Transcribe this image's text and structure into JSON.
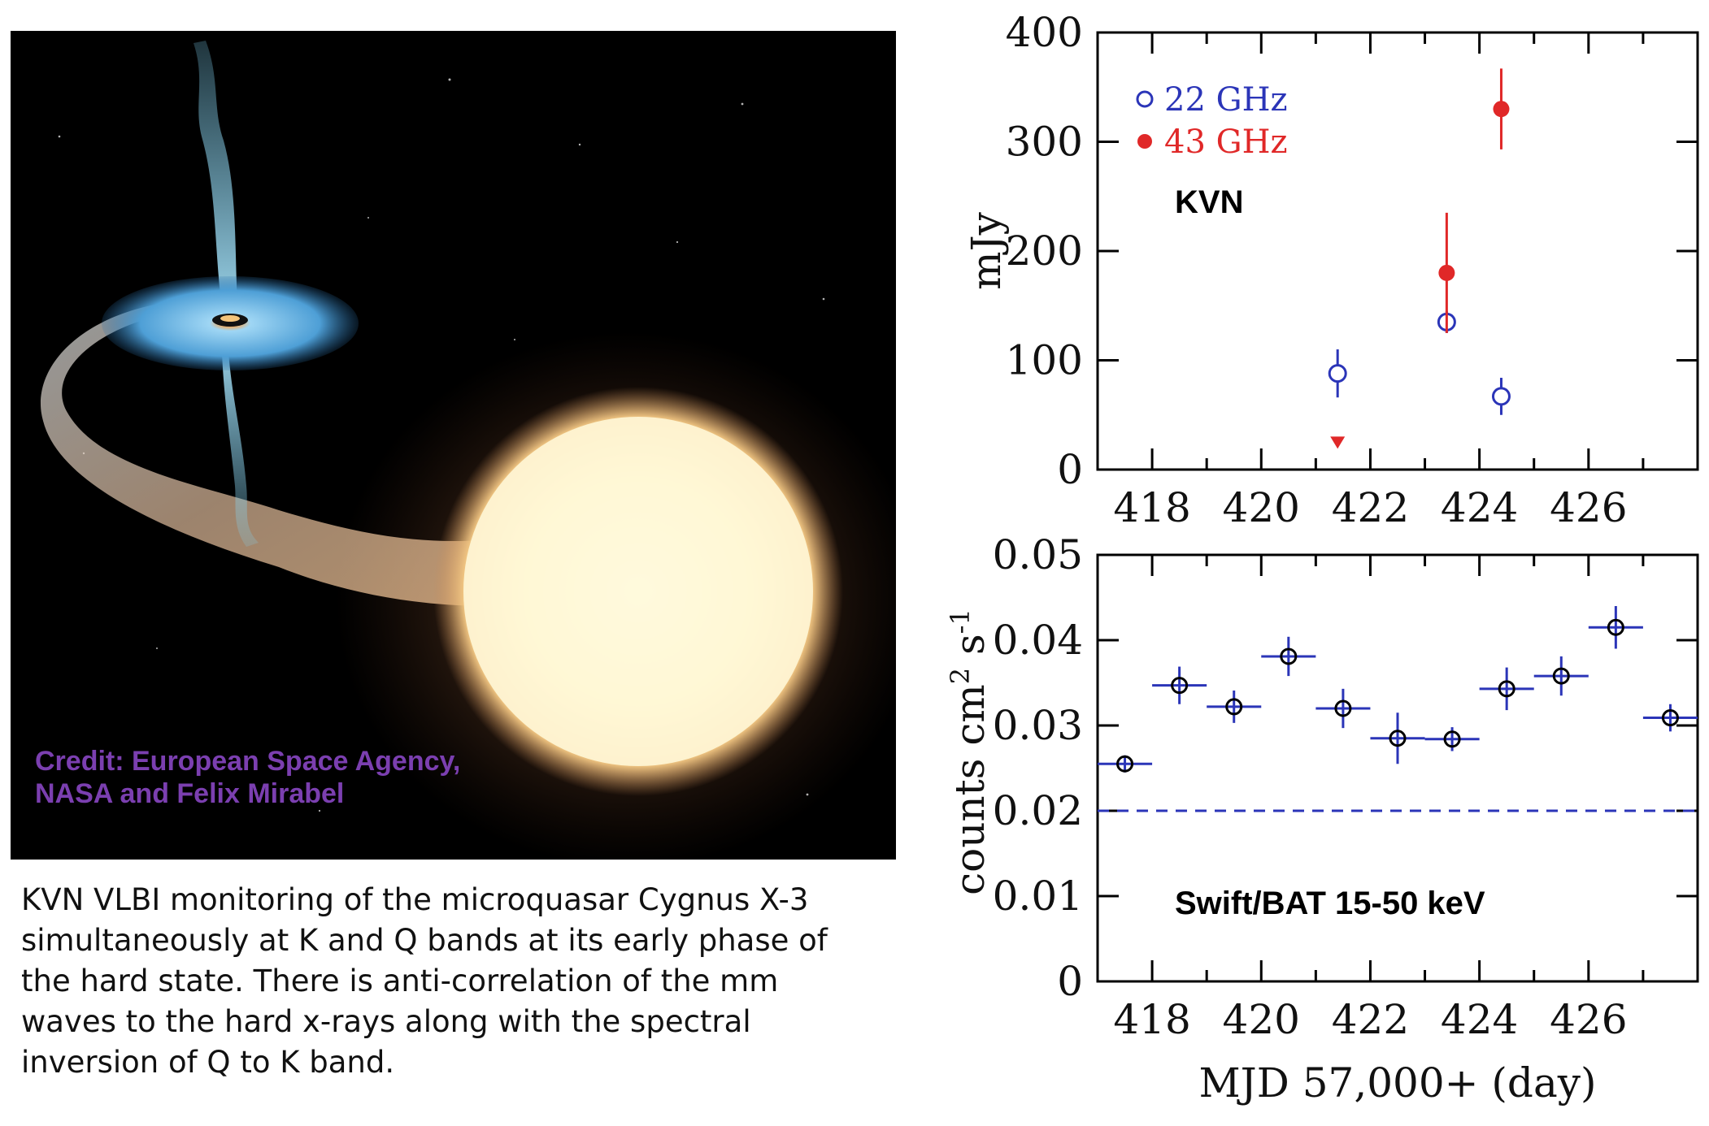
{
  "artwork": {
    "credit_line1": "Credit: European Space Agency,",
    "credit_line2": "NASA and Felix Mirabel",
    "credit_color": "#7b3fb0"
  },
  "caption": {
    "lines": [
      "KVN VLBI monitoring of the microquasar Cygnus X-3",
      "simultaneously at K and Q bands at its early phase of",
      "the hard state. There is anti-correlation of the mm",
      "waves to the hard x-rays along with the spectral",
      "inversion of Q to K band."
    ]
  },
  "chart_data": [
    {
      "type": "scatter",
      "annotation": "KVN",
      "ylabel": "mJy",
      "xlim": [
        417,
        428
      ],
      "ylim": [
        0,
        400
      ],
      "x_ticks": [
        418,
        420,
        422,
        424,
        426
      ],
      "y_ticks": [
        0,
        100,
        200,
        300,
        400
      ],
      "legend_position": "top-left",
      "series": [
        {
          "name": "22 GHz",
          "marker": "open-circle",
          "color": "#2b35b8",
          "points": [
            {
              "x": 421.4,
              "y": 88,
              "yerr": 22
            },
            {
              "x": 423.4,
              "y": 135,
              "yerr": 10
            },
            {
              "x": 424.4,
              "y": 67,
              "yerr": 17
            }
          ]
        },
        {
          "name": "43 GHz",
          "marker": "filled-circle",
          "color": "#e02828",
          "points": [
            {
              "x": 423.4,
              "y": 180,
              "yerr": 55
            },
            {
              "x": 424.4,
              "y": 330,
              "yerr": 37
            }
          ],
          "upper_limits": [
            {
              "x": 421.4,
              "y": 25
            }
          ]
        }
      ]
    },
    {
      "type": "scatter",
      "annotation": "Swift/BAT 15-50 keV",
      "xlabel": "MJD 57,000+ (day)",
      "ylabel": "counts cm",
      "ylabel_sup1": "2",
      "ylabel_mid": " s",
      "ylabel_sup2": "-1",
      "xlim": [
        417,
        428
      ],
      "ylim": [
        0,
        0.05
      ],
      "x_ticks": [
        418,
        420,
        422,
        424,
        426
      ],
      "y_ticks": [
        "0",
        "0.01",
        "0.02",
        "0.03",
        "0.04",
        "0.05"
      ],
      "reference_line": 0.02,
      "series": [
        {
          "name": "",
          "marker": "open-circle",
          "color": "#2b35b8",
          "points": [
            {
              "x": 417.5,
              "y": 0.0255,
              "xerr": 0.5,
              "yerr": 0.001
            },
            {
              "x": 418.5,
              "y": 0.0347,
              "xerr": 0.5,
              "yerr": 0.0022
            },
            {
              "x": 419.5,
              "y": 0.0322,
              "xerr": 0.5,
              "yerr": 0.0019
            },
            {
              "x": 420.5,
              "y": 0.0381,
              "xerr": 0.5,
              "yerr": 0.0023
            },
            {
              "x": 421.5,
              "y": 0.032,
              "xerr": 0.5,
              "yerr": 0.0023
            },
            {
              "x": 422.5,
              "y": 0.0285,
              "xerr": 0.5,
              "yerr": 0.003
            },
            {
              "x": 423.5,
              "y": 0.0284,
              "xerr": 0.5,
              "yerr": 0.0014
            },
            {
              "x": 424.5,
              "y": 0.0343,
              "xerr": 0.5,
              "yerr": 0.0025
            },
            {
              "x": 425.5,
              "y": 0.0358,
              "xerr": 0.5,
              "yerr": 0.0023
            },
            {
              "x": 426.5,
              "y": 0.0415,
              "xerr": 0.5,
              "yerr": 0.0025
            },
            {
              "x": 427.5,
              "y": 0.0309,
              "xerr": 0.5,
              "yerr": 0.0016
            }
          ]
        }
      ]
    }
  ]
}
